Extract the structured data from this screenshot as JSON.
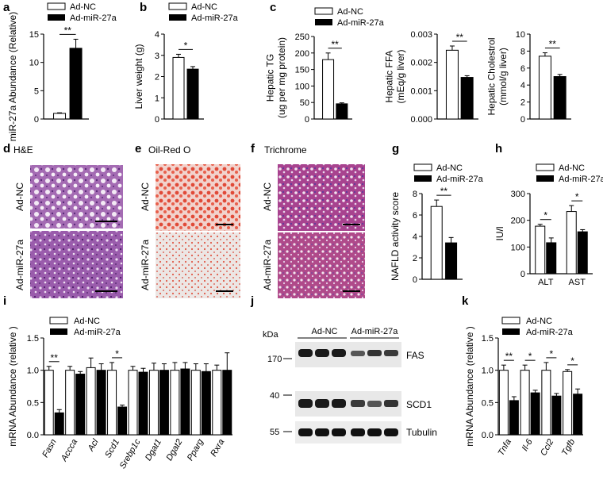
{
  "colors": {
    "nc": "#ffffff",
    "mir": "#000000",
    "he": "#b77fc2",
    "oil": "#e85a48",
    "tri": "#9a4a9a"
  },
  "legend": {
    "nc": "Ad-NC",
    "mir": "Ad-miR-27a"
  },
  "panel_labels": {
    "a": "a",
    "b": "b",
    "c": "c",
    "d": "d",
    "e": "e",
    "f": "f",
    "g": "g",
    "h": "h",
    "i": "i",
    "j": "j",
    "k": "k"
  },
  "images": {
    "he_title": "H&E",
    "oil_title": "Oil-Red O",
    "tri_title": "Trichrome",
    "row_nc": "Ad-NC",
    "row_mir": "Ad-miR-27a"
  },
  "blot": {
    "kda": "kDa",
    "group_nc": "Ad-NC",
    "group_mir": "Ad-miR-27a",
    "markers": [
      "170",
      "40",
      "55"
    ],
    "proteins": [
      "FAS",
      "SCD1",
      "Tubulin"
    ]
  },
  "chart_data": [
    {
      "id": "a",
      "type": "bar",
      "ylabel": "miR-27a Abundance (Relative)",
      "ylim": [
        0,
        15
      ],
      "yticks": [
        "0",
        "5",
        "10",
        "15"
      ],
      "series": [
        {
          "name": "Ad-NC",
          "values": [
            1.0
          ],
          "errors": [
            0.1
          ]
        },
        {
          "name": "Ad-miR-27a",
          "values": [
            12.5
          ],
          "errors": [
            1.6
          ]
        }
      ],
      "significance": [
        "**"
      ]
    },
    {
      "id": "b",
      "type": "bar",
      "ylabel": "Liver weight (g)",
      "ylim": [
        0,
        4
      ],
      "yticks": [
        "0",
        "1",
        "2",
        "3",
        "4"
      ],
      "series": [
        {
          "name": "Ad-NC",
          "values": [
            2.9
          ],
          "errors": [
            0.15
          ]
        },
        {
          "name": "Ad-miR-27a",
          "values": [
            2.35
          ],
          "errors": [
            0.12
          ]
        }
      ],
      "significance": [
        "*"
      ]
    },
    {
      "id": "c1",
      "type": "bar",
      "ylabel": "Hepatic TG (ug per mg protein)",
      "ylim": [
        0,
        250
      ],
      "yticks": [
        "0",
        "50",
        "100",
        "150",
        "200",
        "250"
      ],
      "series": [
        {
          "name": "Ad-NC",
          "values": [
            180
          ],
          "errors": [
            20
          ]
        },
        {
          "name": "Ad-miR-27a",
          "values": [
            46
          ],
          "errors": [
            3
          ]
        }
      ],
      "significance": [
        "**"
      ]
    },
    {
      "id": "c2",
      "type": "bar",
      "ylabel": "Hepatic FFA (mEq/g liver)",
      "ylim": [
        0,
        0.003
      ],
      "yticks": [
        "0.000",
        "0.001",
        "0.002",
        "0.003"
      ],
      "series": [
        {
          "name": "Ad-NC",
          "values": [
            0.00243
          ],
          "errors": [
            0.00015
          ]
        },
        {
          "name": "Ad-miR-27a",
          "values": [
            0.00147
          ],
          "errors": [
            6e-05
          ]
        }
      ],
      "significance": [
        "**"
      ]
    },
    {
      "id": "c3",
      "type": "bar",
      "ylabel": "Hepatic Cholestrol (mmol/g liver)",
      "ylim": [
        0,
        10
      ],
      "yticks": [
        "0",
        "2",
        "4",
        "6",
        "8",
        "10"
      ],
      "series": [
        {
          "name": "Ad-NC",
          "values": [
            7.4
          ],
          "errors": [
            0.4
          ]
        },
        {
          "name": "Ad-miR-27a",
          "values": [
            5.0
          ],
          "errors": [
            0.25
          ]
        }
      ],
      "significance": [
        "**"
      ]
    },
    {
      "id": "g",
      "type": "bar",
      "ylabel": "NAFLD activity score",
      "ylim": [
        0,
        8
      ],
      "yticks": [
        "0",
        "2",
        "4",
        "6",
        "8"
      ],
      "series": [
        {
          "name": "Ad-NC",
          "values": [
            6.8
          ],
          "errors": [
            0.6
          ]
        },
        {
          "name": "Ad-miR-27a",
          "values": [
            3.4
          ],
          "errors": [
            0.5
          ]
        }
      ],
      "significance": [
        "**"
      ]
    },
    {
      "id": "h",
      "type": "bar",
      "ylabel": "IU/l",
      "ylim": [
        0,
        300
      ],
      "yticks": [
        "0",
        "100",
        "200",
        "300"
      ],
      "categories": [
        "ALT",
        "AST"
      ],
      "series": [
        {
          "name": "Ad-NC",
          "values": [
            178,
            233
          ],
          "errors": [
            7,
            22
          ]
        },
        {
          "name": "Ad-miR-27a",
          "values": [
            116,
            157
          ],
          "errors": [
            18,
            8
          ]
        }
      ],
      "significance": [
        "*",
        "*"
      ]
    },
    {
      "id": "i",
      "type": "bar",
      "ylabel": "mRNA Abundance (relative )",
      "ylim": [
        0,
        1.5
      ],
      "yticks": [
        "0.0",
        "0.5",
        "1.0",
        "1.5"
      ],
      "categories": [
        "Fasn",
        "Accca",
        "Acl",
        "Scd1",
        "Srebp1c",
        "Dgat1",
        "Dgat2",
        "Pparg",
        "Rxra"
      ],
      "series": [
        {
          "name": "Ad-NC",
          "values": [
            1.0,
            1.0,
            1.04,
            1.0,
            1.0,
            1.0,
            1.0,
            1.0,
            1.0
          ],
          "errors": [
            0.06,
            0.06,
            0.15,
            0.12,
            0.06,
            0.11,
            0.12,
            0.1,
            0.08
          ]
        },
        {
          "name": "Ad-miR-27a",
          "values": [
            0.34,
            0.94,
            1.0,
            0.43,
            0.97,
            1.0,
            1.02,
            0.98,
            1.0
          ],
          "errors": [
            0.05,
            0.04,
            0.1,
            0.03,
            0.06,
            0.1,
            0.1,
            0.12,
            0.27
          ]
        }
      ],
      "significance": [
        "**",
        "",
        "",
        "*",
        "",
        "",
        "",
        "",
        ""
      ]
    },
    {
      "id": "k",
      "type": "bar",
      "ylabel": "mRNA Abundance (relative )",
      "ylim": [
        0,
        1.5
      ],
      "yticks": [
        "0.0",
        "0.5",
        "1.0",
        "1.5"
      ],
      "categories": [
        "Tnfa",
        "Il-6",
        "Ccl2",
        "Tgfb"
      ],
      "series": [
        {
          "name": "Ad-NC",
          "values": [
            1.0,
            1.0,
            1.0,
            0.98
          ],
          "errors": [
            0.08,
            0.08,
            0.12,
            0.03
          ]
        },
        {
          "name": "Ad-miR-27a",
          "values": [
            0.53,
            0.65,
            0.6,
            0.63
          ],
          "errors": [
            0.06,
            0.04,
            0.04,
            0.08
          ]
        }
      ],
      "significance": [
        "**",
        "*",
        "*",
        "*"
      ]
    }
  ]
}
